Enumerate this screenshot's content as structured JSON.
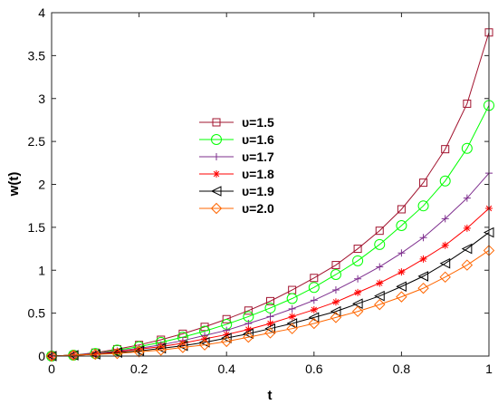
{
  "chart_data": {
    "type": "line",
    "title": "",
    "xlabel": "t",
    "ylabel": "w(t)",
    "xlim": [
      0,
      1
    ],
    "ylim": [
      0,
      4
    ],
    "xticks": [
      0,
      0.2,
      0.4,
      0.6,
      0.8,
      1
    ],
    "xtick_labels": [
      "0",
      "0.2",
      "0.4",
      "0.6",
      "0.8",
      "1"
    ],
    "yticks": [
      0,
      0.5,
      1,
      1.5,
      2,
      2.5,
      3,
      3.5,
      4
    ],
    "ytick_labels": [
      "0",
      "0.5",
      "1",
      "1.5",
      "2",
      "2.5",
      "3",
      "3.5",
      "4"
    ],
    "grid": false,
    "legend_position": "center-left",
    "x": [
      0,
      0.05,
      0.1,
      0.15,
      0.2,
      0.25,
      0.3,
      0.35,
      0.4,
      0.45,
      0.5,
      0.55,
      0.6,
      0.65,
      0.7,
      0.75,
      0.8,
      0.85,
      0.9,
      0.95,
      1.0
    ],
    "series": [
      {
        "name": "υ=1.5",
        "color": "#a2142f",
        "marker": "square",
        "values": [
          0,
          0.01,
          0.04,
          0.08,
          0.13,
          0.19,
          0.26,
          0.34,
          0.43,
          0.53,
          0.64,
          0.77,
          0.91,
          1.06,
          1.25,
          1.46,
          1.71,
          2.02,
          2.41,
          2.94,
          3.77
        ]
      },
      {
        "name": "υ=1.6",
        "color": "#00ff00",
        "marker": "circle",
        "values": [
          0,
          0.01,
          0.03,
          0.07,
          0.11,
          0.16,
          0.22,
          0.29,
          0.37,
          0.46,
          0.56,
          0.67,
          0.8,
          0.95,
          1.11,
          1.3,
          1.52,
          1.75,
          2.04,
          2.42,
          2.92
        ]
      },
      {
        "name": "υ=1.7",
        "color": "#7e2f8e",
        "marker": "plus",
        "values": [
          0,
          0.01,
          0.03,
          0.06,
          0.09,
          0.13,
          0.18,
          0.24,
          0.3,
          0.38,
          0.46,
          0.55,
          0.65,
          0.77,
          0.9,
          1.04,
          1.2,
          1.38,
          1.6,
          1.84,
          2.13
        ]
      },
      {
        "name": "υ=1.8",
        "color": "#ff0000",
        "marker": "asterisk",
        "values": [
          0,
          0.01,
          0.02,
          0.05,
          0.08,
          0.11,
          0.15,
          0.2,
          0.25,
          0.31,
          0.38,
          0.46,
          0.54,
          0.63,
          0.74,
          0.85,
          0.98,
          1.13,
          1.29,
          1.49,
          1.72
        ]
      },
      {
        "name": "υ=1.9",
        "color": "#000000",
        "marker": "triangle-left",
        "values": [
          0,
          0.01,
          0.02,
          0.04,
          0.06,
          0.09,
          0.12,
          0.16,
          0.21,
          0.26,
          0.32,
          0.38,
          0.45,
          0.52,
          0.61,
          0.7,
          0.81,
          0.93,
          1.08,
          1.25,
          1.44
        ]
      },
      {
        "name": "υ=2.0",
        "color": "#ff6600",
        "marker": "diamond",
        "values": [
          0,
          0.01,
          0.02,
          0.03,
          0.05,
          0.07,
          0.1,
          0.13,
          0.17,
          0.22,
          0.27,
          0.32,
          0.38,
          0.45,
          0.52,
          0.6,
          0.69,
          0.79,
          0.92,
          1.06,
          1.23
        ]
      }
    ]
  }
}
